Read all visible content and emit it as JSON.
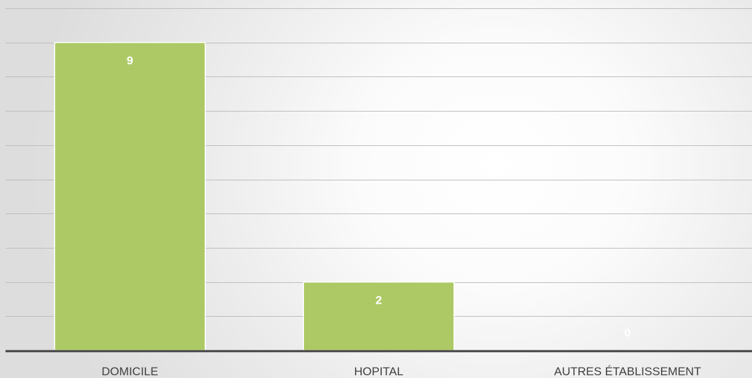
{
  "chart_data": {
    "type": "bar",
    "categories": [
      "DOMICILE",
      "HOPITAL",
      "AUTRES ÉTABLISSEMENT"
    ],
    "values": [
      9,
      2,
      0
    ],
    "title": "",
    "xlabel": "",
    "ylabel": "",
    "ylim": [
      0,
      10
    ],
    "grid": true,
    "legend": "none",
    "data_labels": [
      "9",
      "2",
      "0"
    ]
  },
  "colors": {
    "bar": "#adc965",
    "axis": "#404040",
    "gridline": "#bdbdbd",
    "data_label": "#ffffff",
    "tick_label": "#404040"
  }
}
